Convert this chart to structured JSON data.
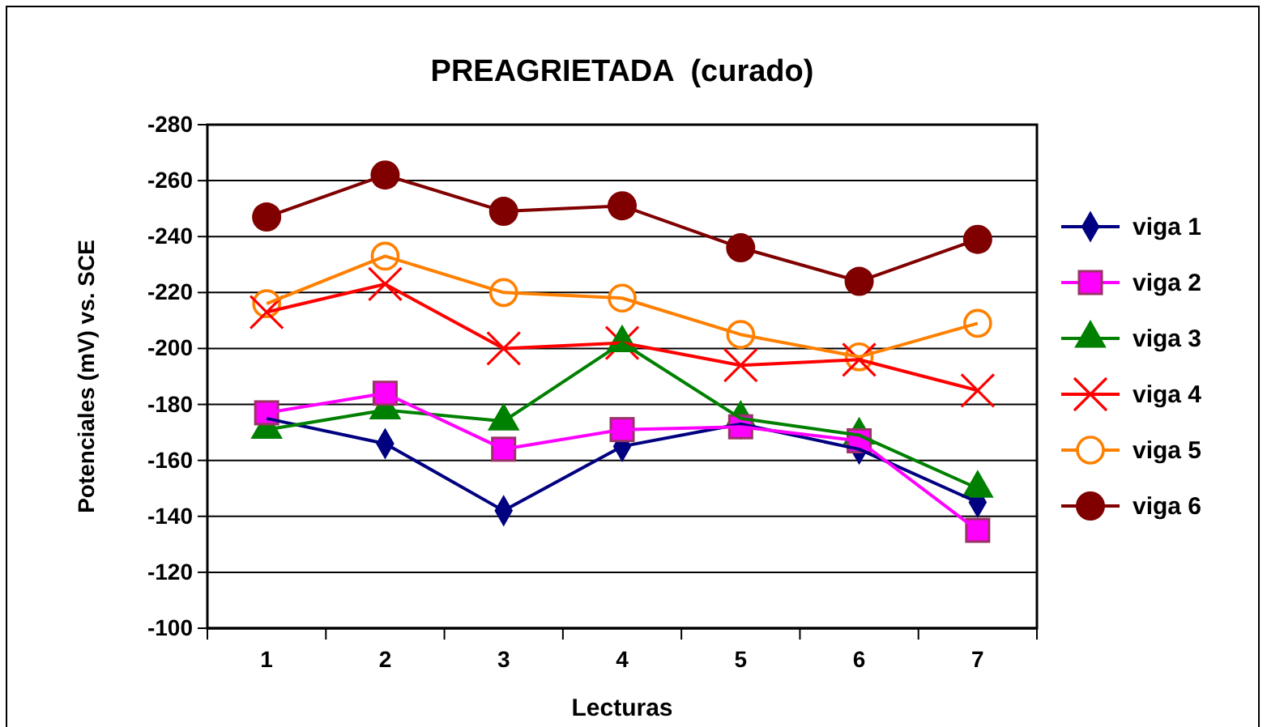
{
  "chart_data": {
    "type": "line",
    "title": "PREAGRIETADA  (curado)",
    "xlabel": "Lecturas",
    "ylabel": "Potenciales (mV) vs. SCE",
    "categories": [
      "1",
      "2",
      "3",
      "4",
      "5",
      "6",
      "7"
    ],
    "ylim": [
      -100,
      -280
    ],
    "yticks": [
      -280,
      -260,
      -240,
      -220,
      -200,
      -180,
      -160,
      -140,
      -120,
      -100
    ],
    "grid": "y",
    "legend": "right",
    "line_style": "solid",
    "series": [
      {
        "name": "viga 1",
        "color": "#000080",
        "marker": "diamond",
        "values": [
          -175,
          -166,
          -142,
          -165,
          -173,
          -164,
          -145
        ]
      },
      {
        "name": "viga 2",
        "color": "#ff00ff",
        "marker": "square",
        "values": [
          -177,
          -184,
          -164,
          -171,
          -172,
          -167,
          -135
        ]
      },
      {
        "name": "viga 3",
        "color": "#008000",
        "marker": "triangle",
        "values": [
          -171,
          -178,
          -174,
          -202,
          -175,
          -169,
          -150
        ]
      },
      {
        "name": "viga 4",
        "color": "#ff0000",
        "marker": "cross",
        "values": [
          -213,
          -223,
          -200,
          -202,
          -194,
          -196,
          -185
        ]
      },
      {
        "name": "viga 5",
        "color": "#ff8000",
        "marker": "circle",
        "values": [
          -216,
          -233,
          -220,
          -218,
          -205,
          -197,
          -209
        ]
      },
      {
        "name": "viga 6",
        "color": "#800000",
        "marker": "circle",
        "values": [
          -247,
          -262,
          -249,
          -251,
          -236,
          -224,
          -239
        ]
      }
    ]
  }
}
